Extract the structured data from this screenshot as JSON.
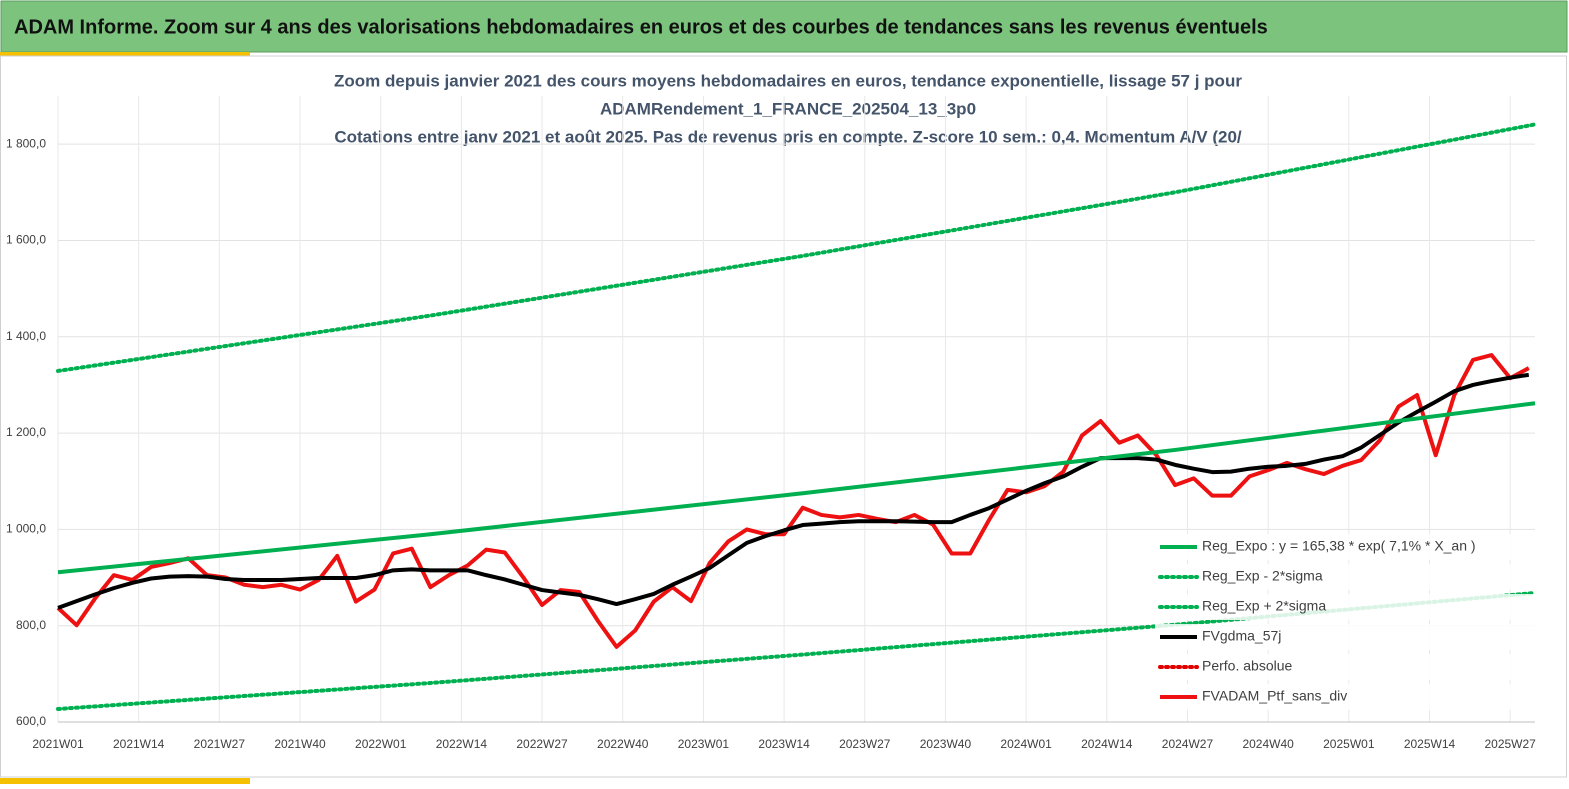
{
  "header": {
    "title": "ADAM Informe. Zoom sur 4 ans des valorisations hebdomadaires en euros et des courbes de tendances sans les revenus éventuels"
  },
  "chart_data": {
    "type": "line",
    "title": [
      "Zoom depuis janvier 2021 des cours moyens hebdomadaires  en euros, tendance exponentielle, lissage 57 j pour",
      "ADAMRendement_1_FRANCE_202504_13_3p0",
      "Cotations entre janv 2021 et août 2025. Pas de revenus pris en compte. Z-score 10 sem.: 0,4. Momentum A/V (20/"
    ],
    "x": [
      0,
      3,
      6,
      9,
      12,
      15,
      18,
      21,
      24,
      27,
      30,
      33,
      36,
      39,
      42,
      45,
      48,
      51,
      54,
      57,
      60,
      63,
      66,
      69,
      72,
      75,
      78,
      81,
      84,
      87,
      90,
      93,
      96,
      99,
      102,
      105,
      108,
      111,
      114,
      117,
      120,
      123,
      126,
      129,
      132,
      135,
      138,
      141,
      144,
      147,
      150,
      153,
      156,
      159,
      162,
      165,
      168,
      171,
      174,
      177,
      180,
      183,
      186,
      189,
      192,
      195,
      198,
      201,
      204,
      207,
      210,
      213,
      216,
      219,
      222,
      225,
      228,
      231,
      234,
      237
    ],
    "xlim": [
      0,
      238
    ],
    "xticks": [
      {
        "value": 0,
        "label": "2021W01"
      },
      {
        "value": 13,
        "label": "2021W14"
      },
      {
        "value": 26,
        "label": "2021W27"
      },
      {
        "value": 39,
        "label": "2021W40"
      },
      {
        "value": 52,
        "label": "2022W01"
      },
      {
        "value": 65,
        "label": "2022W14"
      },
      {
        "value": 78,
        "label": "2022W27"
      },
      {
        "value": 91,
        "label": "2022W40"
      },
      {
        "value": 104,
        "label": "2023W01"
      },
      {
        "value": 117,
        "label": "2023W14"
      },
      {
        "value": 130,
        "label": "2023W27"
      },
      {
        "value": 143,
        "label": "2023W40"
      },
      {
        "value": 156,
        "label": "2024W01"
      },
      {
        "value": 169,
        "label": "2024W14"
      },
      {
        "value": 182,
        "label": "2024W27"
      },
      {
        "value": 195,
        "label": "2024W40"
      },
      {
        "value": 208,
        "label": "2025W01"
      },
      {
        "value": 221,
        "label": "2025W14"
      },
      {
        "value": 234,
        "label": "2025W27"
      }
    ],
    "ylim": [
      600,
      1900
    ],
    "yticks": [
      {
        "value": 600,
        "label": "600,0"
      },
      {
        "value": 800,
        "label": "800,0"
      },
      {
        "value": 1000,
        "label": "1 000,0"
      },
      {
        "value": 1200,
        "label": "1 200,0"
      },
      {
        "value": 1400,
        "label": "1 400,0"
      },
      {
        "value": 1600,
        "label": "1 600,0"
      },
      {
        "value": 1800,
        "label": "1 800,0"
      }
    ],
    "grid": true,
    "legend": "right",
    "series": [
      {
        "name": "Reg_Expo : y = 165,38 * exp( 7,1% *  X_an )",
        "color": "#00b050",
        "dash": "solid",
        "x": [
          0,
          60,
          120,
          180,
          238
        ],
        "values": [
          911,
          990,
          1075,
          1165,
          1262
        ]
      },
      {
        "name": "Reg_Exp - 2*sigma",
        "color": "#00b050",
        "dash": "dotted",
        "x": [
          0,
          60,
          120,
          180,
          238
        ],
        "values": [
          627,
          681,
          740,
          802,
          868
        ]
      },
      {
        "name": "Reg_Exp + 2*sigma",
        "color": "#00b050",
        "dash": "dotted",
        "x": [
          0,
          60,
          120,
          180,
          238
        ],
        "values": [
          1329,
          1444,
          1568,
          1700,
          1841
        ]
      },
      {
        "name": "FVgdma_57j",
        "color": "#000000",
        "dash": "solid",
        "values": [
          837,
          851,
          865,
          878,
          889,
          898,
          902,
          903,
          902,
          897,
          895,
          895,
          895,
          897,
          899,
          899,
          899,
          905,
          915,
          917,
          915,
          915,
          915,
          905,
          896,
          885,
          874,
          869,
          864,
          855,
          845,
          855,
          866,
          885,
          902,
          920,
          946,
          972,
          986,
          998,
          1009,
          1012,
          1015,
          1017,
          1017,
          1017,
          1016,
          1015,
          1015,
          1030,
          1044,
          1062,
          1080,
          1096,
          1110,
          1130,
          1148,
          1148,
          1148,
          1145,
          1134,
          1126,
          1119,
          1120,
          1126,
          1130,
          1132,
          1136,
          1145,
          1152,
          1170,
          1196,
          1222,
          1244,
          1265,
          1287,
          1300,
          1308,
          1315,
          1321
        ]
      },
      {
        "name": "Perfo. absolue",
        "color": "#e00000",
        "dash": "dotted",
        "x": [],
        "values": []
      },
      {
        "name": "FVADAM_Ptf_sans_div",
        "color": "#ee1111",
        "dash": "solid",
        "values": [
          837,
          801,
          857,
          905,
          895,
          922,
          930,
          940,
          905,
          900,
          885,
          880,
          885,
          875,
          895,
          945,
          850,
          875,
          950,
          960,
          880,
          905,
          925,
          958,
          952,
          900,
          843,
          874,
          870,
          810,
          756,
          790,
          850,
          880,
          851,
          930,
          975,
          1000,
          990,
          990,
          1045,
          1030,
          1025,
          1030,
          1022,
          1015,
          1030,
          1010,
          950,
          950,
          1019,
          1082,
          1077,
          1090,
          1120,
          1195,
          1225,
          1180,
          1195,
          1154,
          1092,
          1106,
          1070,
          1070,
          1110,
          1123,
          1138,
          1125,
          1115,
          1132,
          1144,
          1185,
          1255,
          1279,
          1154,
          1279,
          1352,
          1362,
          1314,
          1335
        ]
      }
    ]
  }
}
